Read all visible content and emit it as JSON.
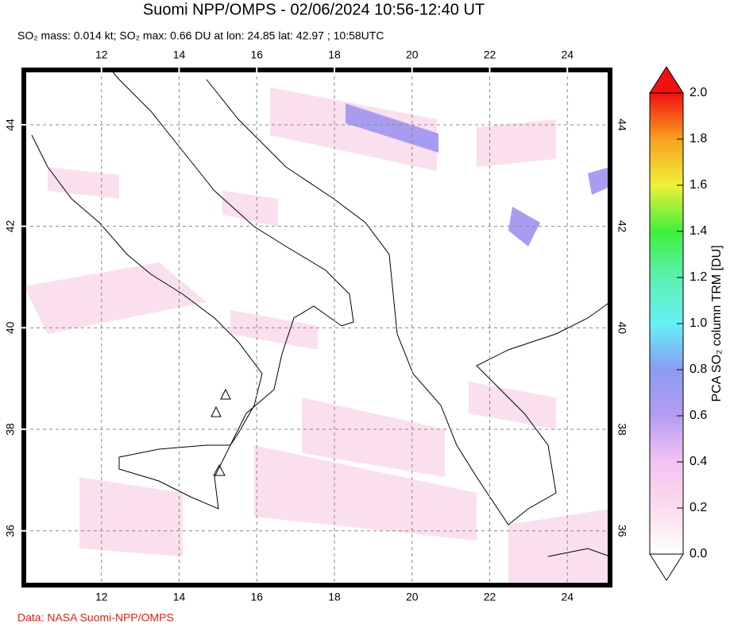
{
  "header": {
    "title": "Suomi NPP/OMPS - 02/06/2024 10:56-12:40 UT",
    "subtitle": "SO₂ mass: 0.014 kt; SO₂ max: 0.66 DU at lon: 24.85 lat: 42.97 ; 10:58UTC"
  },
  "map": {
    "lonlim": [
      10,
      25.1
    ],
    "latlim": [
      34.93,
      45.08
    ],
    "lon_ticks": [
      12,
      14,
      16,
      18,
      20,
      22,
      24
    ],
    "lat_ticks": [
      36,
      38,
      40,
      42,
      44
    ],
    "grid": true
  },
  "colorbar": {
    "label": "PCA SO₂ column TRM [DU]",
    "lim": [
      0,
      2
    ],
    "ticks": [
      {
        "value": 0,
        "label": "0.0"
      },
      {
        "value": 0.2,
        "label": "0.2"
      },
      {
        "value": 0.4,
        "label": "0.4"
      },
      {
        "value": 0.6,
        "label": "0.6"
      },
      {
        "value": 0.8,
        "label": "0.8"
      },
      {
        "value": 1,
        "label": "1.0"
      },
      {
        "value": 1.2,
        "label": "1.2"
      },
      {
        "value": 1.4,
        "label": "1.4"
      },
      {
        "value": 1.6,
        "label": "1.6"
      },
      {
        "value": 1.8,
        "label": "1.8"
      },
      {
        "value": 2,
        "label": "2.0"
      }
    ]
  },
  "footer": {
    "credit": "Data: NASA Suomi-NPP/OMPS"
  }
}
